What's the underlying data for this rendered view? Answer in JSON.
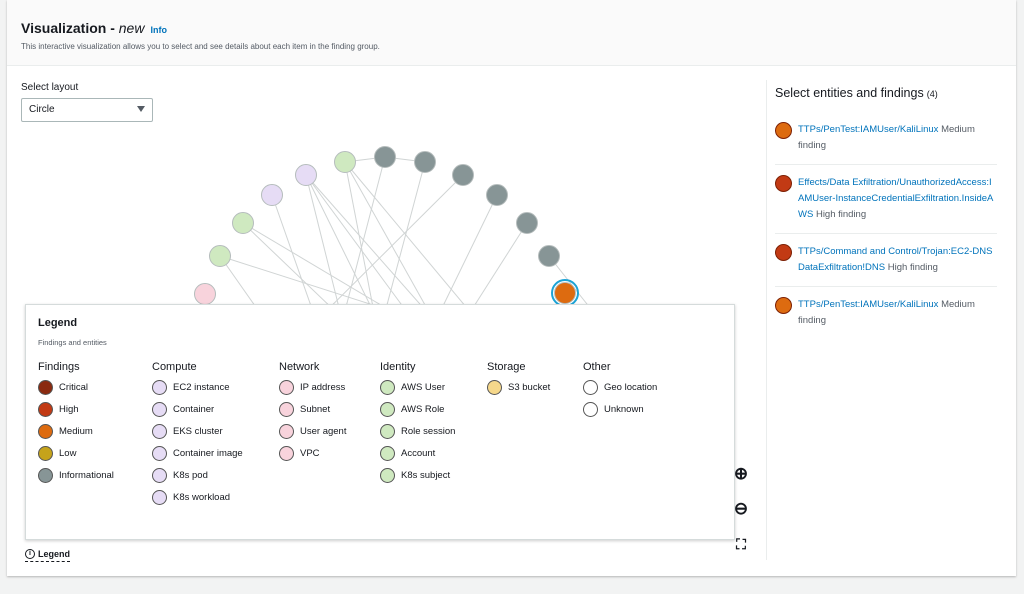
{
  "header": {
    "title": "Visualization - ",
    "title_italic": "new",
    "info": "Info",
    "description": "This interactive visualization allows you to select and see details about each item in the finding group."
  },
  "layout": {
    "label": "Select layout",
    "value": "Circle"
  },
  "panel": {
    "title": "Select entities and findings",
    "count": "(4)",
    "items": [
      {
        "name": "TTPs/PenTest:IAMUser/KaliLinux",
        "severity": "Medium finding",
        "color": "#dd6b10"
      },
      {
        "name": "Effects/Data Exfiltration/UnauthorizedAccess:IAMUser-InstanceCredentialExfiltration.InsideAWS",
        "severity": "High finding",
        "color": "#c23a14"
      },
      {
        "name": "TTPs/Command and Control/Trojan:EC2-DNSDataExfiltration!DNS",
        "severity": "High finding",
        "color": "#c23a14"
      },
      {
        "name": "TTPs/PenTest:IAMUser/KaliLinux",
        "severity": "Medium finding",
        "color": "#dd6b10"
      }
    ]
  },
  "legend": {
    "title": "Legend",
    "subtitle": "Findings and entities",
    "toggle": "Legend",
    "groups": [
      {
        "name": "Findings",
        "items": [
          {
            "label": "Critical",
            "color": "#8a2a10"
          },
          {
            "label": "High",
            "color": "#c23a14"
          },
          {
            "label": "Medium",
            "color": "#dd6b10"
          },
          {
            "label": "Low",
            "color": "#c5a31b"
          },
          {
            "label": "Informational",
            "color": "#879596"
          }
        ]
      },
      {
        "name": "Compute",
        "items": [
          {
            "label": "EC2 instance",
            "color": "#e6dcf5"
          },
          {
            "label": "Container",
            "color": "#e6dcf5"
          },
          {
            "label": "EKS cluster",
            "color": "#e6dcf5"
          },
          {
            "label": "Container image",
            "color": "#e6dcf5"
          },
          {
            "label": "K8s pod",
            "color": "#e6dcf5"
          },
          {
            "label": "K8s workload",
            "color": "#e6dcf5"
          }
        ]
      },
      {
        "name": "Network",
        "items": [
          {
            "label": "IP address",
            "color": "#f8d3dc"
          },
          {
            "label": "Subnet",
            "color": "#f8d3dc"
          },
          {
            "label": "User agent",
            "color": "#f8d3dc"
          },
          {
            "label": "VPC",
            "color": "#f8d3dc"
          }
        ]
      },
      {
        "name": "Identity",
        "items": [
          {
            "label": "AWS User",
            "color": "#cfe9c0"
          },
          {
            "label": "AWS Role",
            "color": "#cfe9c0"
          },
          {
            "label": "Role session",
            "color": "#cfe9c0"
          },
          {
            "label": "Account",
            "color": "#cfe9c0"
          },
          {
            "label": "K8s subject",
            "color": "#cfe9c0"
          }
        ]
      },
      {
        "name": "Storage",
        "items": [
          {
            "label": "S3 bucket",
            "color": "#f6d88b"
          }
        ]
      },
      {
        "name": "Other",
        "items": [
          {
            "label": "Geo location",
            "color": "#ffffff"
          },
          {
            "label": "Unknown",
            "color": "#ffffff"
          }
        ]
      }
    ]
  },
  "zoom": {
    "in": "zoom-in-icon",
    "out": "zoom-out-icon",
    "fit": "fit-icon"
  }
}
